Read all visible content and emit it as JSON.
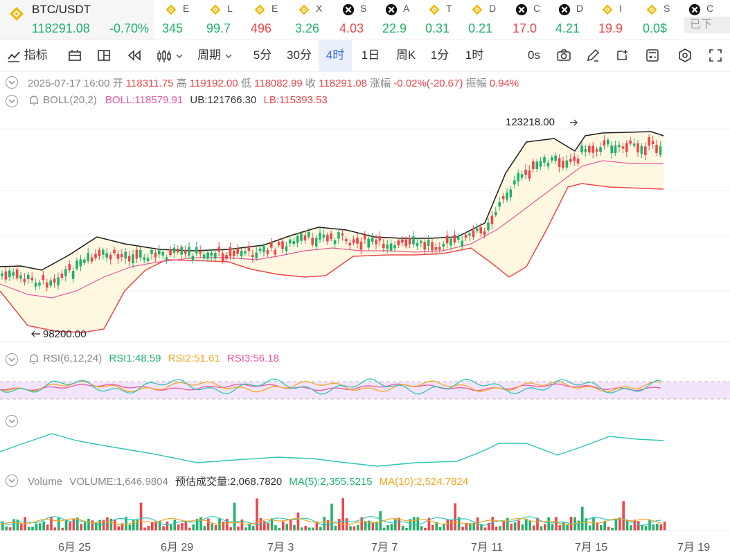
{
  "header": {
    "pair": "BTC/USDT",
    "price": "118291.08",
    "change": "-0.70%",
    "tickers": [
      {
        "name": "E",
        "value": "345",
        "icon": "bnb-icon",
        "color": "green"
      },
      {
        "name": "L",
        "value": "99.7",
        "icon": "bnb-icon",
        "color": "green"
      },
      {
        "name": "E",
        "value": "496",
        "icon": "bnb-icon",
        "color": "red"
      },
      {
        "name": "X",
        "value": "3.26",
        "icon": "bnb-icon",
        "color": "green"
      },
      {
        "name": "S",
        "value": "4.03",
        "icon": "token-icon",
        "color": "red"
      },
      {
        "name": "A",
        "value": "22.9",
        "icon": "token-icon",
        "color": "green"
      },
      {
        "name": "T",
        "value": "0.31",
        "icon": "bnb-icon",
        "color": "green"
      },
      {
        "name": "D",
        "value": "0.21",
        "icon": "bnb-icon",
        "color": "green"
      },
      {
        "name": "C",
        "value": "17.0",
        "icon": "token-icon",
        "color": "red"
      },
      {
        "name": "D",
        "value": "4.21",
        "icon": "token-icon",
        "color": "green"
      },
      {
        "name": "I",
        "value": "19.9",
        "icon": "bnb-icon",
        "color": "red"
      },
      {
        "name": "S",
        "value": "0.0$",
        "icon": "bnb-icon",
        "color": "green"
      },
      {
        "name": "C",
        "value": "",
        "icon": "token-icon",
        "color": "green"
      }
    ],
    "download_label": "已下"
  },
  "toolbar": {
    "indicators": "指标",
    "period": "周期",
    "intervals": [
      "5分",
      "30分",
      "4时",
      "1日",
      "周K",
      "1分",
      "1时"
    ],
    "active_interval": "4时",
    "seconds": "0s"
  },
  "ohlc": {
    "datetime": "2025-07-17 16:00",
    "open_label": "开",
    "open": "118311.75",
    "high_label": "高",
    "high": "119192.00",
    "low_label": "低",
    "low": "118082.99",
    "close_label": "收",
    "close": "118291.08",
    "chg_label": "涨幅",
    "chg": "-0.02%(-20.67)",
    "amp_label": "振幅",
    "amp": "0.94%"
  },
  "boll": {
    "name": "BOLL(20,2)",
    "boll": "BOLL:118579.91",
    "ub": "UB:121766.30",
    "lb": "LB:115393.53"
  },
  "price_marks": {
    "high": "123218.00",
    "low": "98200.00"
  },
  "rsi": {
    "name": "RSI(6,12,24)",
    "rsi1": "RSI1:48.59",
    "rsi2": "RSI2:51.61",
    "rsi3": "RSI3:56.18"
  },
  "volume": {
    "name": "Volume",
    "volume": "VOLUME:1,646.9804",
    "estimate": "预估成交量:2,068.7820",
    "ma5": "MA(5):2,355.5215",
    "ma10": "MA(10):2,524.7824"
  },
  "x_axis": [
    "6月 25",
    "6月 29",
    "7月 3",
    "7月 7",
    "7月 11",
    "7月 15",
    "7月 19"
  ],
  "colors": {
    "up": "#20b26c",
    "down": "#ef454a",
    "accent": "#3a6ad9"
  }
}
